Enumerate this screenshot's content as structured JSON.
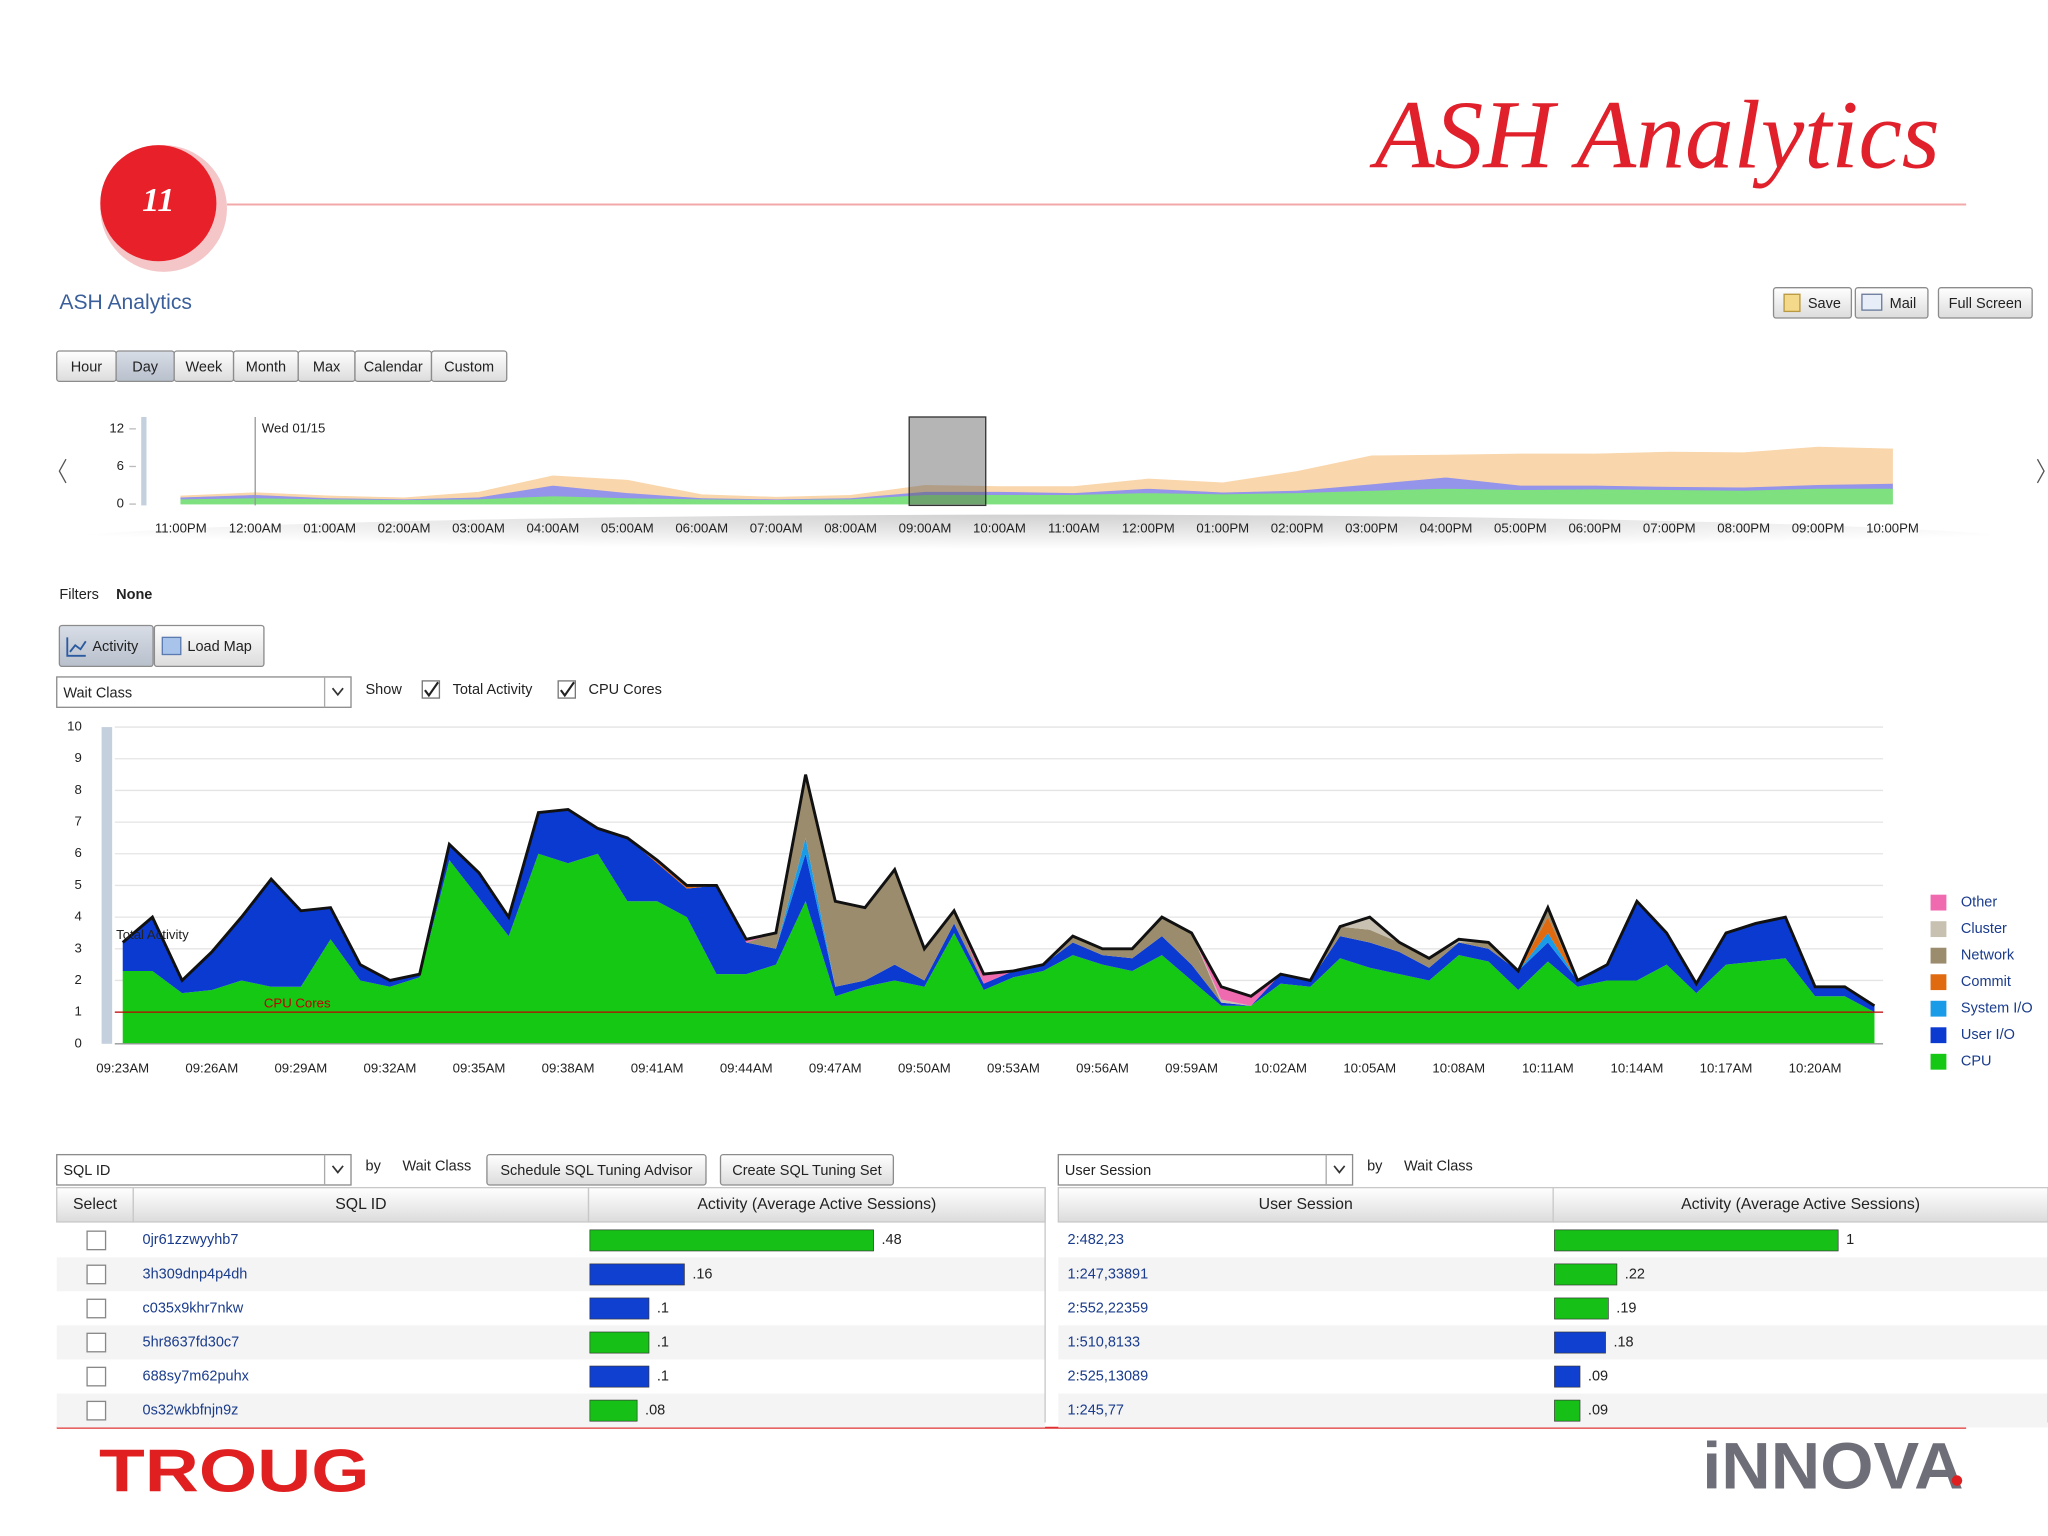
{
  "slide": {
    "number": "11",
    "title": "ASH Analytics"
  },
  "header": {
    "title": "ASH Analytics",
    "buttons": [
      "Save",
      "Mail",
      "Full Screen"
    ]
  },
  "time_range_buttons": [
    "Hour",
    "Day",
    "Week",
    "Month",
    "Max",
    "Calendar",
    "Custom"
  ],
  "filters": {
    "label": "Filters",
    "value": "None"
  },
  "view_buttons": [
    "Activity",
    "Load Map"
  ],
  "controls": {
    "dimension": "Wait Class",
    "show": "Show",
    "checkboxes": [
      "Total Activity",
      "CPU Cores"
    ]
  },
  "chart_data": [
    {
      "type": "area",
      "stacked": true,
      "categories": [
        "11:00PM",
        "12:00AM",
        "01:00AM",
        "02:00AM",
        "03:00AM",
        "04:00AM",
        "05:00AM",
        "06:00AM",
        "07:00AM",
        "08:00AM",
        "09:00AM",
        "10:00AM",
        "11:00AM",
        "12:00PM",
        "01:00PM",
        "02:00PM",
        "03:00PM",
        "04:00PM",
        "05:00PM",
        "06:00PM",
        "07:00PM",
        "08:00PM",
        "09:00PM",
        "10:00PM"
      ],
      "series": [
        {
          "color": "#7ee07e",
          "values": [
            0.8,
            1.0,
            0.8,
            0.7,
            0.8,
            1.3,
            1.0,
            0.8,
            0.7,
            0.8,
            1.5,
            1.5,
            1.5,
            1.8,
            1.6,
            1.8,
            2.2,
            2.5,
            2.3,
            2.4,
            2.3,
            2.2,
            2.5,
            2.5
          ]
        },
        {
          "color": "#9494ea",
          "values": [
            0.3,
            0.5,
            0.2,
            0.1,
            0.3,
            1.7,
            0.8,
            0.2,
            0.1,
            0.2,
            0.5,
            0.5,
            0.3,
            0.7,
            0.3,
            0.4,
            1.0,
            1.8,
            0.7,
            0.6,
            0.5,
            0.5,
            0.6,
            0.8
          ]
        },
        {
          "color": "#f9d6ab",
          "values": [
            0.2,
            0.3,
            0.3,
            0.2,
            0.8,
            1.5,
            2.0,
            0.5,
            0.3,
            0.4,
            1.0,
            0.8,
            1.0,
            1.5,
            1.5,
            3.0,
            4.5,
            3.5,
            5.0,
            5.0,
            5.5,
            5.5,
            6.0,
            5.5
          ]
        }
      ],
      "annotations": [
        {
          "text": "Wed 01/15",
          "category": "12:00AM"
        }
      ],
      "ylim": [
        0,
        12
      ],
      "yticks": [
        0,
        6,
        12
      ]
    },
    {
      "type": "area",
      "stacked": true,
      "categories": [
        "09:23AM",
        null,
        null,
        "09:26AM",
        null,
        null,
        "09:29AM",
        null,
        null,
        "09:32AM",
        null,
        null,
        "09:35AM",
        null,
        null,
        "09:38AM",
        null,
        null,
        "09:41AM",
        null,
        null,
        "09:44AM",
        null,
        null,
        "09:47AM",
        null,
        null,
        "09:50AM",
        null,
        null,
        "09:53AM",
        null,
        null,
        "09:56AM",
        null,
        null,
        "09:59AM",
        null,
        null,
        "10:02AM",
        null,
        null,
        "10:05AM",
        null,
        null,
        "10:08AM",
        null,
        null,
        "10:11AM",
        null,
        null,
        "10:14AM",
        null,
        null,
        "10:17AM",
        null,
        null,
        "10:20AM",
        null,
        null
      ],
      "series": [
        {
          "name": "CPU",
          "color": "#14c814",
          "values": [
            2.3,
            2.3,
            1.6,
            1.7,
            2.0,
            1.8,
            1.8,
            3.3,
            2.0,
            1.8,
            2.1,
            5.8,
            4.6,
            3.4,
            6.0,
            5.7,
            6.0,
            4.5,
            4.5,
            4.0,
            2.2,
            2.2,
            2.5,
            4.5,
            1.5,
            1.8,
            2.0,
            1.8,
            3.5,
            1.7,
            2.1,
            2.3,
            2.8,
            2.5,
            2.3,
            2.8,
            2.0,
            1.2,
            1.2,
            1.9,
            1.8,
            2.7,
            2.4,
            2.2,
            2.0,
            2.8,
            2.6,
            1.7,
            2.6,
            1.8,
            2.0,
            2.0,
            2.5,
            1.6,
            2.5,
            2.6,
            2.7,
            1.5,
            1.5,
            1.0
          ]
        },
        {
          "name": "User I/O",
          "color": "#0a3ad0",
          "values": [
            0.9,
            1.7,
            0.4,
            1.2,
            2.0,
            3.4,
            2.4,
            1.0,
            0.5,
            0.2,
            0.1,
            0.5,
            0.8,
            0.6,
            1.3,
            1.7,
            0.8,
            2.0,
            1.2,
            0.9,
            2.8,
            1.0,
            0.5,
            1.5,
            0.3,
            0.2,
            0.5,
            0.2,
            0.3,
            0.2,
            0.2,
            0.2,
            0.4,
            0.3,
            0.4,
            0.6,
            0.5,
            0.1,
            0,
            0.3,
            0.2,
            0.7,
            0.8,
            0.7,
            0.4,
            0.4,
            0.4,
            0.6,
            0.6,
            0.2,
            0.5,
            2.5,
            1.0,
            0.3,
            1.0,
            1.2,
            1.3,
            0.3,
            0.3,
            0.2
          ]
        },
        {
          "name": "System I/O",
          "color": "#1a9be8",
          "values": [
            0,
            0,
            0,
            0,
            0,
            0,
            0,
            0,
            0,
            0,
            0,
            0,
            0,
            0,
            0,
            0,
            0,
            0,
            0,
            0,
            0,
            0,
            0,
            0.5,
            0,
            0,
            0,
            0,
            0,
            0,
            0,
            0,
            0,
            0,
            0,
            0,
            0,
            0,
            0,
            0,
            0,
            0,
            0,
            0,
            0,
            0,
            0,
            0,
            0.3,
            0,
            0,
            0,
            0,
            0,
            0,
            0,
            0,
            0,
            0,
            0
          ]
        },
        {
          "name": "Commit",
          "color": "#e06a10",
          "values": [
            0,
            0,
            0,
            0,
            0,
            0,
            0,
            0,
            0,
            0,
            0,
            0,
            0,
            0,
            0,
            0,
            0,
            0,
            0.1,
            0.1,
            0,
            0,
            0,
            0,
            0,
            0,
            0,
            0,
            0,
            0,
            0,
            0,
            0,
            0,
            0,
            0,
            0,
            0,
            0,
            0,
            0,
            0,
            0,
            0,
            0,
            0,
            0,
            0,
            0.5,
            0,
            0,
            0,
            0,
            0,
            0,
            0,
            0,
            0,
            0,
            0
          ]
        },
        {
          "name": "Network",
          "color": "#9c8c6e",
          "values": [
            0,
            0,
            0,
            0,
            0,
            0,
            0,
            0,
            0,
            0,
            0,
            0,
            0,
            0,
            0,
            0,
            0,
            0,
            0,
            0,
            0,
            0,
            0.5,
            2.0,
            2.7,
            2.3,
            3.0,
            1.0,
            0.4,
            0,
            0,
            0,
            0.2,
            0.2,
            0.3,
            0.6,
            1.0,
            0,
            0,
            0,
            0,
            0.3,
            0.4,
            0.3,
            0.3,
            0,
            0.2,
            0,
            0.3,
            0,
            0,
            0,
            0,
            0,
            0,
            0,
            0,
            0,
            0,
            0
          ]
        },
        {
          "name": "Cluster",
          "color": "#c8c0b0",
          "values": [
            0,
            0,
            0,
            0,
            0,
            0,
            0,
            0,
            0,
            0,
            0,
            0,
            0,
            0,
            0,
            0,
            0,
            0,
            0,
            0,
            0,
            0,
            0,
            0,
            0,
            0,
            0,
            0,
            0,
            0,
            0,
            0,
            0,
            0,
            0,
            0,
            0,
            0.1,
            0,
            0,
            0,
            0,
            0.4,
            0,
            0,
            0.1,
            0,
            0,
            0,
            0,
            0,
            0,
            0,
            0,
            0,
            0,
            0,
            0,
            0,
            0
          ]
        },
        {
          "name": "Other",
          "color": "#f06ab0",
          "values": [
            0,
            0,
            0,
            0,
            0,
            0,
            0,
            0,
            0,
            0,
            0,
            0,
            0,
            0,
            0,
            0,
            0,
            0,
            0,
            0,
            0,
            0.1,
            0,
            0,
            0,
            0,
            0,
            0,
            0,
            0.3,
            0,
            0,
            0,
            0,
            0,
            0,
            0,
            0.4,
            0.3,
            0,
            0,
            0,
            0,
            0,
            0,
            0,
            0,
            0,
            0,
            0,
            0,
            0,
            0,
            0,
            0,
            0,
            0,
            0,
            0,
            0
          ]
        }
      ],
      "annotations": [
        {
          "text": "Total Activity"
        },
        {
          "text": "CPU Cores",
          "value": 1,
          "color": "#c00000"
        }
      ],
      "ylim": [
        0,
        10
      ],
      "yticks": [
        0,
        1,
        2,
        3,
        4,
        5,
        6,
        7,
        8,
        9,
        10
      ],
      "grid": true,
      "legend": "right"
    }
  ],
  "sql_panel": {
    "dropdown": "SQL ID",
    "by": "by",
    "group": "Wait Class",
    "buttons": [
      "Schedule SQL Tuning Advisor",
      "Create SQL Tuning Set"
    ],
    "columns": [
      "Select",
      "SQL ID",
      "Activity (Average Active Sessions)"
    ],
    "rows": [
      {
        "id": "0jr61zzwyyhb7",
        "value": 0.48,
        "value_label": ".48",
        "color": "#16c016"
      },
      {
        "id": "3h309dnp4p4dh",
        "value": 0.16,
        "value_label": ".16",
        "color": "#1040d0"
      },
      {
        "id": "c035x9khr7nkw",
        "value": 0.1,
        "value_label": ".1",
        "color": "#1040d0"
      },
      {
        "id": "5hr8637fd30c7",
        "value": 0.1,
        "value_label": ".1",
        "color": "#16c016"
      },
      {
        "id": "688sy7m62puhx",
        "value": 0.1,
        "value_label": ".1",
        "color": "#1040d0"
      },
      {
        "id": "0s32wkbfnjn9z",
        "value": 0.08,
        "value_label": ".08",
        "color": "#16c016"
      }
    ]
  },
  "session_panel": {
    "dropdown": "User Session",
    "by": "by",
    "group": "Wait Class",
    "columns": [
      "User Session",
      "Activity (Average Active Sessions)"
    ],
    "rows": [
      {
        "id": "2:482,23",
        "value": 1,
        "value_label": "1",
        "color": "#16c016"
      },
      {
        "id": "1:247,33891",
        "value": 0.22,
        "value_label": ".22",
        "color": "#16c016"
      },
      {
        "id": "2:552,22359",
        "value": 0.19,
        "value_label": ".19",
        "color": "#16c016"
      },
      {
        "id": "1:510,8133",
        "value": 0.18,
        "value_label": ".18",
        "color": "#1040d0"
      },
      {
        "id": "2:525,13089",
        "value": 0.09,
        "value_label": ".09",
        "color": "#1040d0"
      },
      {
        "id": "1:245,77",
        "value": 0.09,
        "value_label": ".09",
        "color": "#16c016"
      }
    ]
  },
  "footer": {
    "left_logo": "TROUG",
    "right_logo": "iNNOVA"
  }
}
